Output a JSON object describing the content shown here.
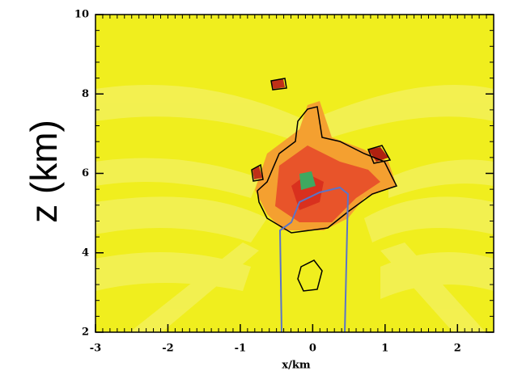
{
  "chart_data": {
    "type": "contour",
    "x_label": "x/km",
    "y_label": "z (km)",
    "xlim": [
      -3,
      2.5
    ],
    "xticks": [
      -3,
      -2,
      -1,
      0,
      1,
      2
    ],
    "ylim": [
      2,
      10
    ],
    "yticks": [
      2,
      4,
      6,
      8,
      10
    ],
    "background_color": "#f0ee1e"
  }
}
